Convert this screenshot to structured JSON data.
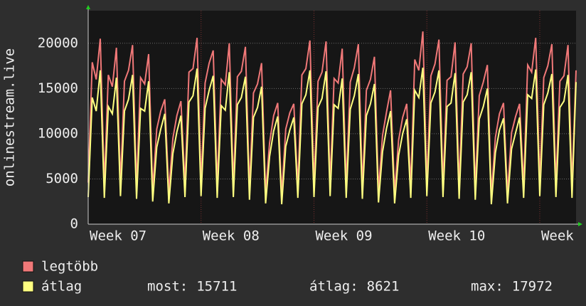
{
  "chart_data": {
    "type": "line",
    "y_label": "onlinestream.live",
    "categories": [
      "Week 07",
      null,
      null,
      null,
      null,
      null,
      null,
      null,
      null,
      null,
      null,
      null,
      null,
      null,
      null,
      null,
      null,
      null,
      null,
      null,
      null,
      null,
      null,
      null,
      null,
      null,
      null,
      null,
      "Week 08",
      null,
      null,
      null,
      null,
      null,
      null,
      null,
      null,
      null,
      null,
      null,
      null,
      null,
      null,
      null,
      null,
      null,
      null,
      null,
      null,
      null,
      null,
      null,
      null,
      null,
      null,
      null,
      "Week 09",
      null,
      null,
      null,
      null,
      null,
      null,
      null,
      null,
      null,
      null,
      null,
      null,
      null,
      null,
      null,
      null,
      null,
      null,
      null,
      null,
      null,
      null,
      null,
      null,
      null,
      null,
      null,
      "Week 10",
      null,
      null,
      null,
      null,
      null,
      null,
      null,
      null,
      null,
      null,
      null,
      null,
      null,
      null,
      null,
      null,
      null,
      null,
      null,
      null,
      null,
      null,
      null,
      null,
      null,
      null,
      null,
      "Week",
      null,
      null,
      null,
      null,
      null,
      null,
      null,
      null,
      null
    ],
    "series": [
      {
        "name": "legtöbb",
        "color": "#f07878",
        "values": [
          4600,
          17900,
          16000,
          20500,
          4300,
          16500,
          15200,
          19500,
          4500,
          15800,
          17000,
          19800,
          4200,
          16200,
          15500,
          18800,
          3800,
          10500,
          12500,
          13800,
          3600,
          9500,
          12000,
          13600,
          4400,
          16800,
          17200,
          20600,
          4500,
          15600,
          17800,
          19200,
          4300,
          16000,
          15400,
          20000,
          4400,
          16300,
          16900,
          19600,
          4000,
          14500,
          15500,
          17800,
          3500,
          9000,
          12000,
          13400,
          3300,
          10500,
          12300,
          13300,
          4200,
          16500,
          17200,
          20300,
          4400,
          15800,
          16800,
          20200,
          4500,
          16100,
          15600,
          19400,
          4300,
          15700,
          17300,
          19900,
          4100,
          14800,
          16000,
          18500,
          3700,
          9800,
          12400,
          14800,
          3500,
          9300,
          11800,
          13300,
          4300,
          18200,
          17000,
          21300,
          4500,
          16400,
          17700,
          20400,
          4400,
          15900,
          16300,
          20100,
          4200,
          16600,
          17400,
          20000,
          4000,
          14200,
          15700,
          17600,
          3300,
          9600,
          12200,
          13400,
          3400,
          10100,
          11900,
          13300,
          4300,
          17600,
          16800,
          20600,
          4500,
          16200,
          17500,
          19900,
          4400,
          15800,
          16400,
          19800,
          4300,
          17000
        ]
      },
      {
        "name": "átlag",
        "color": "#ffff80",
        "values": [
          3000,
          14000,
          12500,
          17000,
          2900,
          13000,
          12200,
          16200,
          3100,
          12500,
          13800,
          16500,
          2800,
          12800,
          12500,
          15800,
          2500,
          8500,
          10500,
          12200,
          2300,
          7800,
          10200,
          12000,
          3000,
          13500,
          14200,
          17200,
          3100,
          12800,
          14800,
          16400,
          2900,
          13100,
          12600,
          16800,
          3000,
          13200,
          14000,
          16300,
          2700,
          11800,
          12900,
          15200,
          2300,
          7500,
          10300,
          11900,
          2200,
          8600,
          10400,
          11800,
          2900,
          13300,
          14300,
          17000,
          3000,
          12900,
          13900,
          16900,
          3100,
          13200,
          12800,
          16100,
          2900,
          12700,
          14200,
          16600,
          2800,
          12000,
          13300,
          15500,
          2400,
          8000,
          10600,
          12500,
          2300,
          7600,
          10000,
          11600,
          2900,
          14800,
          14000,
          17300,
          3100,
          13400,
          14600,
          17000,
          3000,
          13000,
          13400,
          16700,
          2800,
          13500,
          14300,
          16800,
          2700,
          11600,
          13000,
          15000,
          2200,
          7900,
          10400,
          11700,
          2300,
          8300,
          10100,
          11800,
          2900,
          14300,
          13900,
          17100,
          3100,
          13200,
          14500,
          16600,
          3000,
          12900,
          13600,
          16500,
          2900,
          15711
        ]
      }
    ],
    "ylim": [
      0,
      23600
    ],
    "yticks": [
      0,
      5000,
      10000,
      15000,
      20000
    ],
    "grid": true,
    "legend_stats": [
      {
        "label": "most:",
        "value": 15711
      },
      {
        "label": "átlag:",
        "value": 8621
      },
      {
        "label": "max:",
        "value": 17972
      }
    ]
  }
}
